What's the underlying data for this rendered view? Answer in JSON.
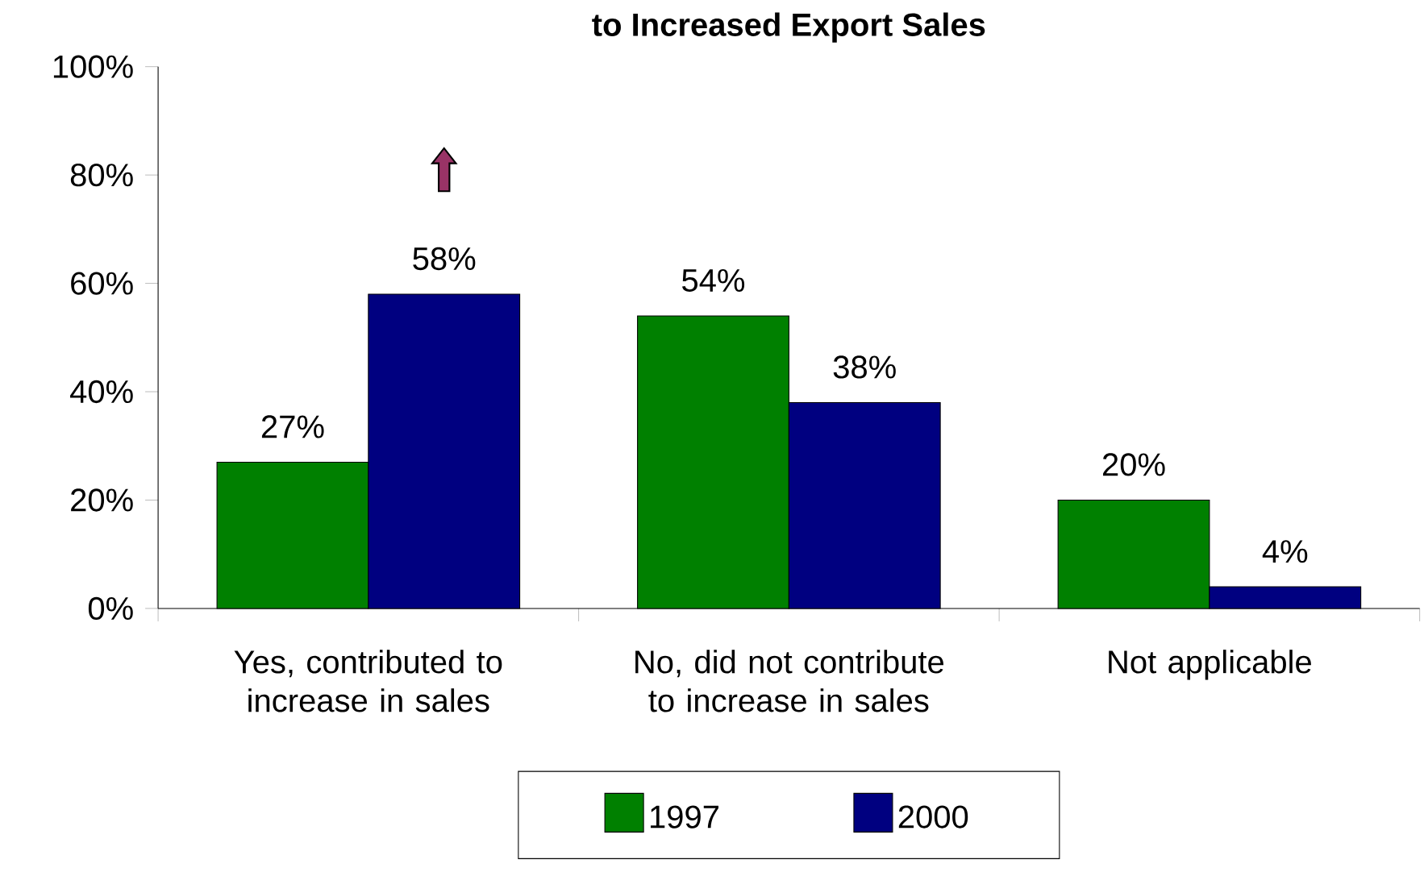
{
  "chart_data": {
    "type": "bar",
    "title": "to Increased Export Sales",
    "categories": [
      "Yes, contributed to increase in sales",
      "No, did not contribute to increase in sales",
      "Not applicable"
    ],
    "series": [
      {
        "name": "1997",
        "color": "#008000",
        "values": [
          27,
          54,
          20
        ],
        "value_labels": [
          "27%",
          "54%",
          "20%"
        ]
      },
      {
        "name": "2000",
        "color": "#000080",
        "values": [
          58,
          38,
          4
        ],
        "value_labels": [
          "58%",
          "38%",
          "4%"
        ]
      }
    ],
    "ylim": [
      0,
      100
    ],
    "yticks": [
      {
        "value": 0,
        "label": "0%"
      },
      {
        "value": 20,
        "label": "20%"
      },
      {
        "value": 40,
        "label": "40%"
      },
      {
        "value": 60,
        "label": "60%"
      },
      {
        "value": 80,
        "label": "80%"
      },
      {
        "value": 100,
        "label": "100%"
      }
    ],
    "grid": false,
    "legend": "bottom"
  }
}
